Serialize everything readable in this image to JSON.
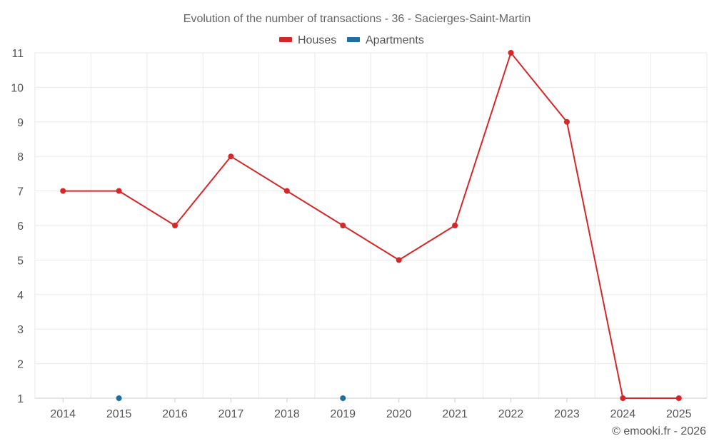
{
  "chart_data": {
    "type": "line",
    "title": "Evolution of the number of transactions - 36 - Sacierges-Saint-Martin",
    "categories": [
      "2014",
      "2015",
      "2016",
      "2017",
      "2018",
      "2019",
      "2020",
      "2021",
      "2022",
      "2023",
      "2024",
      "2025"
    ],
    "y_ticks": [
      "1",
      "2",
      "3",
      "4",
      "5",
      "6",
      "7",
      "8",
      "9",
      "10",
      "11"
    ],
    "ylim": [
      1,
      11
    ],
    "xlabel": "",
    "ylabel": "",
    "grid": true,
    "legend_position": "top-center",
    "series": [
      {
        "name": "Houses",
        "color": "#d62728",
        "values": [
          7,
          7,
          6,
          8,
          7,
          6,
          5,
          6,
          11,
          9,
          1,
          1
        ],
        "draw_line": true
      },
      {
        "name": "Apartments",
        "color": "#1f6fa3",
        "values": [
          null,
          1,
          null,
          null,
          null,
          1,
          null,
          null,
          null,
          null,
          null,
          null
        ],
        "draw_line": false
      }
    ],
    "credit": "© emooki.fr - 2026"
  }
}
